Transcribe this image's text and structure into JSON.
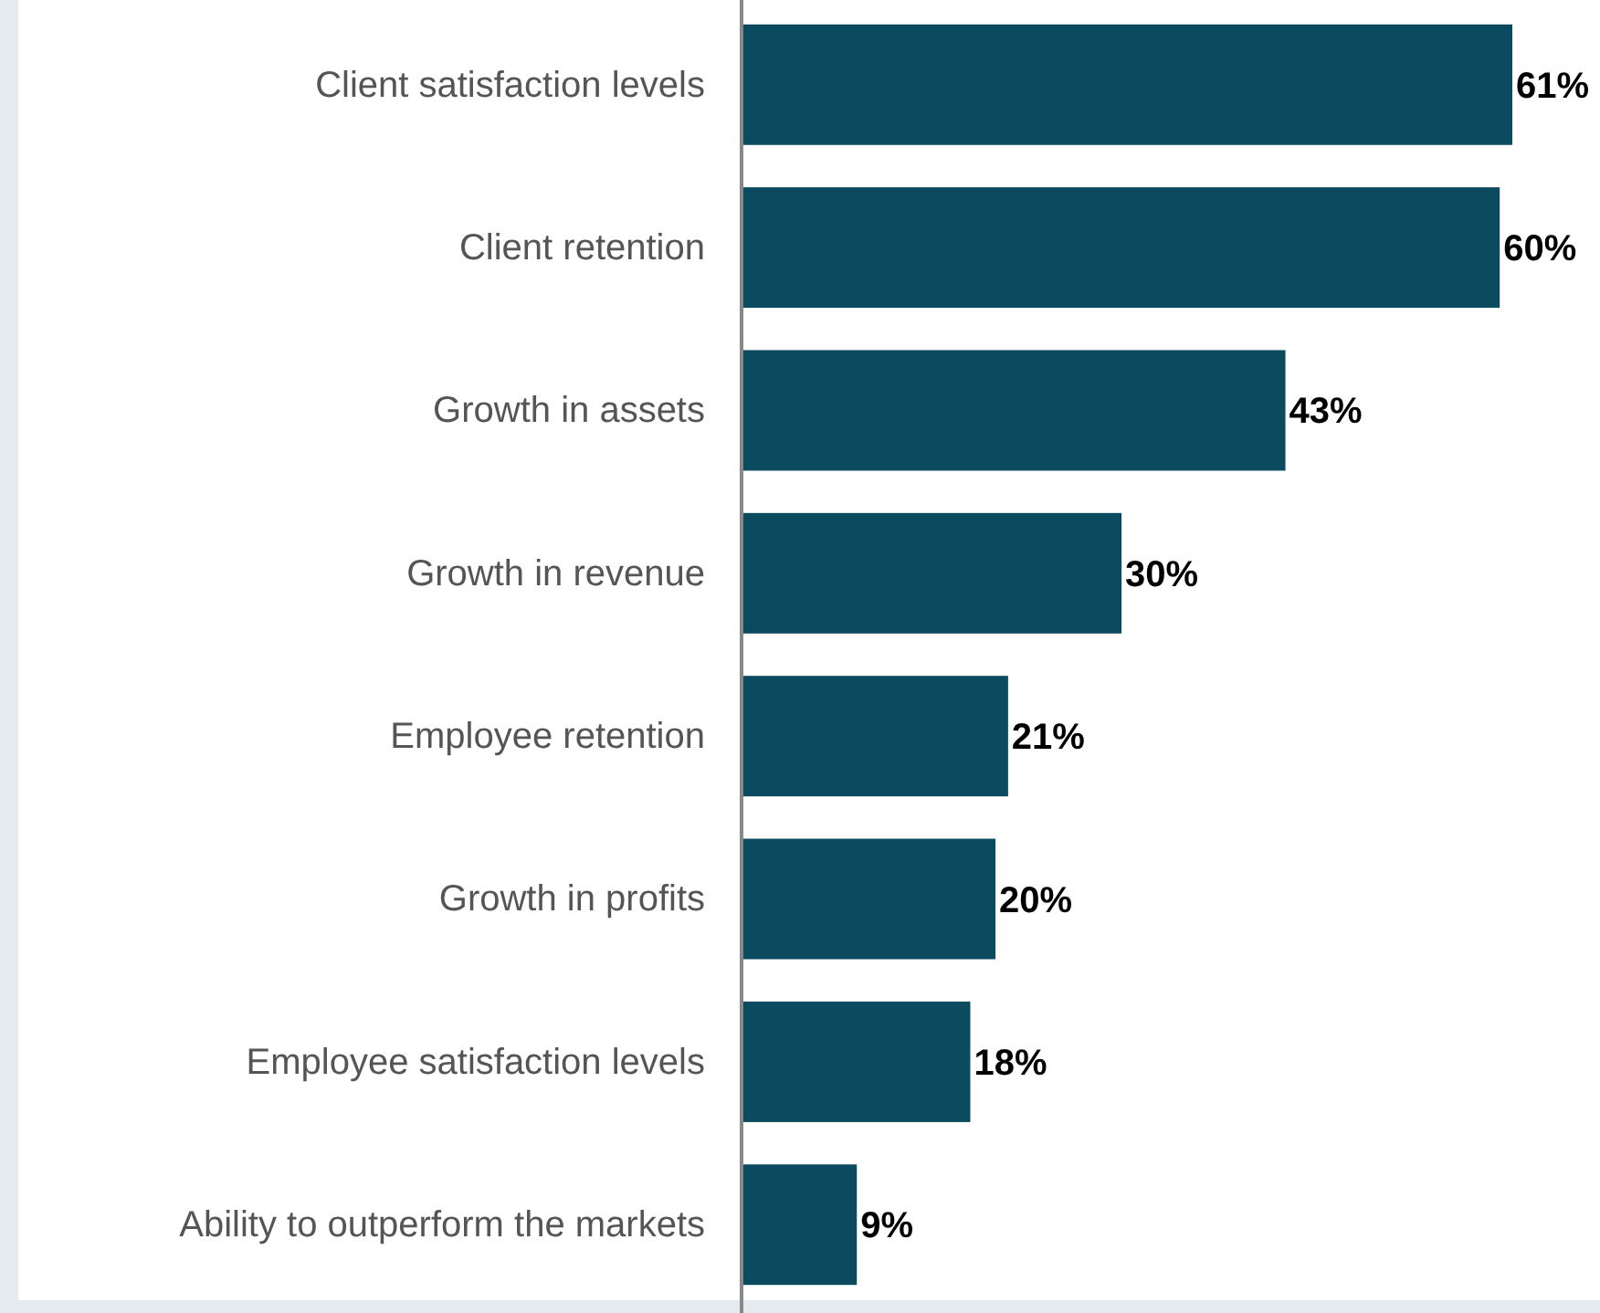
{
  "chart_data": {
    "type": "bar",
    "orientation": "horizontal",
    "tick_labels": "y",
    "categories": [
      "Client satisfaction levels",
      "Client retention",
      "Growth in assets",
      "Growth in revenue",
      "Employee retention",
      "Growth in profits",
      "Employee satisfaction levels",
      "Ability to outperform the markets"
    ],
    "values": [
      61,
      60,
      43,
      30,
      21,
      20,
      18,
      9
    ],
    "value_labels": [
      "61%",
      "60%",
      "43%",
      "30%",
      "21%",
      "20%",
      "18%",
      "9%"
    ],
    "color": "#0b4a5f",
    "xlim": [
      0,
      61
    ]
  }
}
